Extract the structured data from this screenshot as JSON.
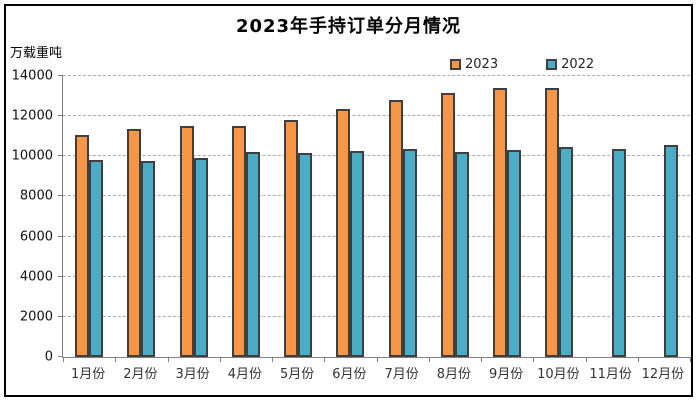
{
  "chart_data": {
    "type": "bar",
    "title": "2023年手持订单分月情况",
    "ylabel": "万载重吨",
    "xlabel": "",
    "categories": [
      "1月份",
      "2月份",
      "3月份",
      "4月份",
      "5月份",
      "6月份",
      "7月份",
      "8月份",
      "9月份",
      "10月份",
      "11月份",
      "12月份"
    ],
    "series": [
      {
        "name": "2023",
        "color": "#F79646",
        "values": [
          11050,
          11360,
          11490,
          11520,
          11800,
          12380,
          12790,
          13160,
          13390,
          13380,
          null,
          null
        ]
      },
      {
        "name": "2022",
        "color": "#4BACC6",
        "values": [
          9800,
          9790,
          9930,
          10230,
          10180,
          10270,
          10340,
          10220,
          10290,
          10450,
          10340,
          10550
        ]
      }
    ],
    "ylim": [
      0,
      14000
    ],
    "yticks": [
      0,
      2000,
      4000,
      6000,
      8000,
      10000,
      12000,
      14000
    ],
    "grid": true,
    "gridline_style": "dashed",
    "legend_position": "top",
    "bar_border_color": "#3F3F3F",
    "axis_color": "#808080",
    "gridline_color": "#ABABAB",
    "frame_border_color": "#000000"
  }
}
